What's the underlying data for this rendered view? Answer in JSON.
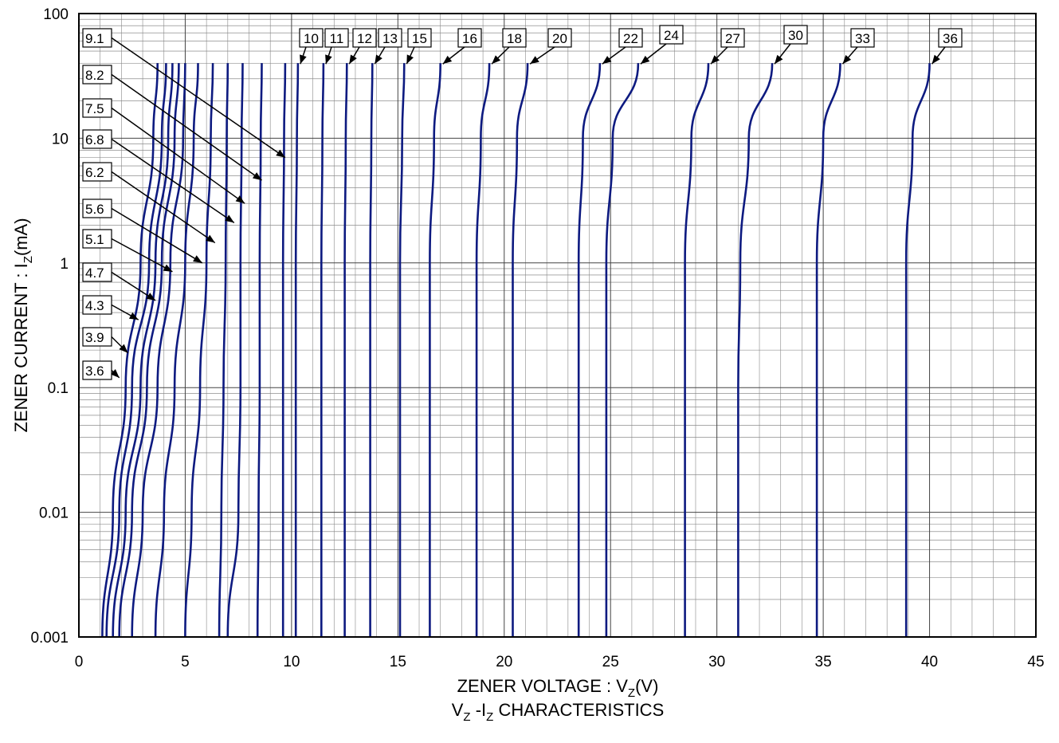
{
  "chart_data": {
    "type": "line",
    "title": "",
    "caption": {
      "main": "V",
      "sub1": "Z",
      "mid": " -I",
      "sub2": "Z",
      "rest": " CHARACTERISTICS"
    },
    "xlabel": {
      "main": "ZENER VOLTAGE : V",
      "sub": "Z",
      "suffix": "(V)"
    },
    "ylabel": {
      "main": "ZENER CURRENT : I",
      "sub": "Z",
      "suffix": "(mA)"
    },
    "xlim": [
      0,
      45
    ],
    "ylim": [
      0.001,
      100
    ],
    "yscale": "log",
    "grid": true,
    "line_color": "#0d1a80",
    "x_ticks": [
      0,
      5,
      10,
      15,
      20,
      25,
      30,
      35,
      40,
      45
    ],
    "x_tick_labels": [
      "0",
      "5",
      "10",
      "15",
      "20",
      "25",
      "30",
      "35",
      "40",
      "45"
    ],
    "y_ticks": [
      0.001,
      0.01,
      0.1,
      1,
      10,
      100
    ],
    "y_tick_labels": [
      "0.001",
      "0.01",
      "0.1",
      "1",
      "10",
      "100"
    ],
    "series": [
      {
        "name": "3.6",
        "x": [
          1.1,
          1.6,
          2.2,
          2.9,
          3.5,
          3.7
        ],
        "y": [
          0.001,
          0.01,
          0.1,
          1,
          10,
          40
        ]
      },
      {
        "name": "3.9",
        "x": [
          1.3,
          1.9,
          2.5,
          3.3,
          3.9,
          4.1
        ],
        "y": [
          0.001,
          0.01,
          0.1,
          1,
          10,
          40
        ]
      },
      {
        "name": "4.3",
        "x": [
          1.6,
          2.2,
          2.9,
          3.6,
          4.2,
          4.4
        ],
        "y": [
          0.001,
          0.01,
          0.1,
          1,
          10,
          40
        ]
      },
      {
        "name": "4.7",
        "x": [
          1.9,
          2.5,
          3.2,
          3.9,
          4.5,
          4.7
        ],
        "y": [
          0.001,
          0.01,
          0.1,
          1,
          10,
          40
        ]
      },
      {
        "name": "5.1",
        "x": [
          2.5,
          3.0,
          3.7,
          4.3,
          4.9,
          5.0
        ],
        "y": [
          0.001,
          0.01,
          0.1,
          1,
          10,
          40
        ]
      },
      {
        "name": "5.6",
        "x": [
          3.6,
          4.0,
          4.5,
          5.0,
          5.4,
          5.6
        ],
        "y": [
          0.001,
          0.01,
          0.1,
          1,
          10,
          40
        ]
      },
      {
        "name": "6.2",
        "x": [
          5.0,
          5.3,
          5.7,
          6.0,
          6.2,
          6.3
        ],
        "y": [
          0.001,
          0.01,
          0.1,
          1,
          10,
          40
        ]
      },
      {
        "name": "6.8",
        "x": [
          6.6,
          6.7,
          6.8,
          6.9,
          6.95,
          7.0
        ],
        "y": [
          0.001,
          0.01,
          0.1,
          1,
          10,
          40
        ]
      },
      {
        "name": "7.5",
        "x": [
          7.0,
          7.5,
          7.6,
          7.6,
          7.65,
          7.7
        ],
        "y": [
          0.001,
          0.01,
          0.1,
          1,
          10,
          40
        ]
      },
      {
        "name": "8.2",
        "x": [
          8.4,
          8.45,
          8.5,
          8.5,
          8.55,
          8.6
        ],
        "y": [
          0.001,
          0.01,
          0.1,
          1,
          10,
          40
        ]
      },
      {
        "name": "9.1",
        "x": [
          9.6,
          9.6,
          9.6,
          9.6,
          9.65,
          9.7
        ],
        "y": [
          0.001,
          0.01,
          0.1,
          1,
          10,
          40
        ]
      },
      {
        "name": "10",
        "x": [
          10.2,
          10.2,
          10.2,
          10.2,
          10.25,
          10.3
        ],
        "y": [
          0.001,
          0.01,
          0.1,
          1,
          10,
          40
        ]
      },
      {
        "name": "11",
        "x": [
          11.4,
          11.4,
          11.4,
          11.4,
          11.45,
          11.5
        ],
        "y": [
          0.001,
          0.01,
          0.1,
          1,
          10,
          40
        ]
      },
      {
        "name": "12",
        "x": [
          12.5,
          12.5,
          12.5,
          12.5,
          12.55,
          12.6
        ],
        "y": [
          0.001,
          0.01,
          0.1,
          1,
          10,
          40
        ]
      },
      {
        "name": "13",
        "x": [
          13.7,
          13.7,
          13.7,
          13.7,
          13.75,
          13.8
        ],
        "y": [
          0.001,
          0.01,
          0.1,
          1,
          10,
          40
        ]
      },
      {
        "name": "15",
        "x": [
          15.1,
          15.1,
          15.1,
          15.1,
          15.2,
          15.3
        ],
        "y": [
          0.001,
          0.01,
          0.1,
          1,
          10,
          40
        ]
      },
      {
        "name": "16",
        "x": [
          16.5,
          16.5,
          16.5,
          16.5,
          16.7,
          17.0
        ],
        "y": [
          0.001,
          0.01,
          0.1,
          1,
          10,
          40
        ]
      },
      {
        "name": "18",
        "x": [
          18.7,
          18.7,
          18.7,
          18.7,
          18.9,
          19.3
        ],
        "y": [
          0.001,
          0.01,
          0.1,
          1,
          10,
          40
        ]
      },
      {
        "name": "20",
        "x": [
          20.4,
          20.4,
          20.4,
          20.4,
          20.6,
          21.1
        ],
        "y": [
          0.001,
          0.01,
          0.1,
          1,
          10,
          40
        ]
      },
      {
        "name": "22",
        "x": [
          23.5,
          23.5,
          23.5,
          23.5,
          23.7,
          24.5
        ],
        "y": [
          0.001,
          0.01,
          0.1,
          1,
          10,
          40
        ]
      },
      {
        "name": "24",
        "x": [
          24.8,
          24.8,
          24.8,
          24.8,
          25.1,
          26.3
        ],
        "y": [
          0.001,
          0.01,
          0.1,
          1,
          10,
          40
        ]
      },
      {
        "name": "27",
        "x": [
          28.5,
          28.5,
          28.5,
          28.5,
          28.8,
          29.6
        ],
        "y": [
          0.001,
          0.01,
          0.1,
          1,
          10,
          40
        ]
      },
      {
        "name": "30",
        "x": [
          31.0,
          31.0,
          31.0,
          31.1,
          31.5,
          32.6
        ],
        "y": [
          0.001,
          0.01,
          0.1,
          1,
          10,
          40
        ]
      },
      {
        "name": "33",
        "x": [
          34.7,
          34.7,
          34.7,
          34.7,
          35.0,
          35.8
        ],
        "y": [
          0.001,
          0.01,
          0.1,
          1,
          10,
          40
        ]
      },
      {
        "name": "36",
        "x": [
          38.9,
          38.9,
          38.9,
          38.9,
          39.2,
          40.0
        ],
        "y": [
          0.001,
          0.01,
          0.1,
          1,
          10,
          40
        ]
      }
    ]
  }
}
